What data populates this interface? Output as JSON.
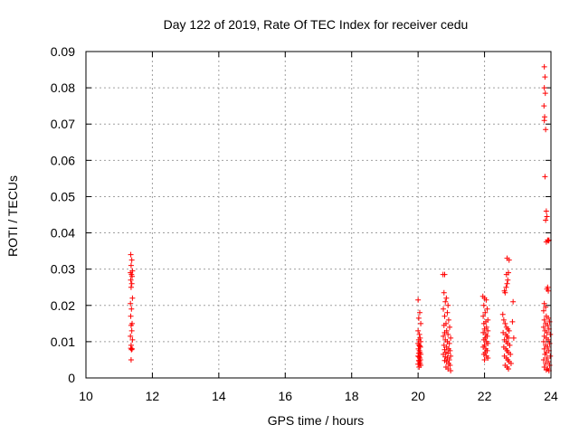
{
  "chart_data": {
    "type": "scatter",
    "title": "Day 122 of 2019, Rate Of TEC Index for receiver cedu",
    "xlabel": "GPS time / hours",
    "ylabel": "ROTI / TECUs",
    "xlim": [
      10,
      24
    ],
    "ylim": [
      0,
      0.09
    ],
    "xticks": [
      "10",
      "12",
      "14",
      "16",
      "18",
      "20",
      "22",
      "24"
    ],
    "yticks": [
      "0",
      "0.01",
      "0.02",
      "0.03",
      "0.04",
      "0.05",
      "0.06",
      "0.07",
      "0.08",
      "0.09"
    ],
    "grid": true,
    "marker": "+",
    "color": "#ff0000",
    "series": [
      {
        "name": "ROTI",
        "points": [
          [
            11.35,
            0.034
          ],
          [
            11.38,
            0.0325
          ],
          [
            11.36,
            0.031
          ],
          [
            11.4,
            0.0295
          ],
          [
            11.34,
            0.029
          ],
          [
            11.37,
            0.0285
          ],
          [
            11.39,
            0.028
          ],
          [
            11.35,
            0.027
          ],
          [
            11.38,
            0.026
          ],
          [
            11.36,
            0.025
          ],
          [
            11.4,
            0.022
          ],
          [
            11.34,
            0.0205
          ],
          [
            11.37,
            0.019
          ],
          [
            11.35,
            0.017
          ],
          [
            11.39,
            0.015
          ],
          [
            11.36,
            0.0145
          ],
          [
            11.38,
            0.013
          ],
          [
            11.34,
            0.0115
          ],
          [
            11.4,
            0.0105
          ],
          [
            11.36,
            0.009
          ],
          [
            11.35,
            0.0082
          ],
          [
            11.39,
            0.008
          ],
          [
            11.37,
            0.0078
          ],
          [
            11.36,
            0.005
          ],
          [
            20.0,
            0.0215
          ],
          [
            20.05,
            0.018
          ],
          [
            20.02,
            0.0165
          ],
          [
            20.08,
            0.015
          ],
          [
            20.0,
            0.013
          ],
          [
            20.04,
            0.012
          ],
          [
            20.06,
            0.011
          ],
          [
            20.02,
            0.0105
          ],
          [
            20.08,
            0.01
          ],
          [
            20.0,
            0.0095
          ],
          [
            20.03,
            0.009
          ],
          [
            20.05,
            0.0088
          ],
          [
            20.07,
            0.0085
          ],
          [
            20.01,
            0.008
          ],
          [
            20.04,
            0.0075
          ],
          [
            20.06,
            0.007
          ],
          [
            20.02,
            0.0068
          ],
          [
            20.08,
            0.0065
          ],
          [
            20.0,
            0.006
          ],
          [
            20.03,
            0.0058
          ],
          [
            20.05,
            0.0055
          ],
          [
            20.07,
            0.005
          ],
          [
            20.02,
            0.0048
          ],
          [
            20.04,
            0.0045
          ],
          [
            20.06,
            0.004
          ],
          [
            20.0,
            0.0038
          ],
          [
            20.08,
            0.0035
          ],
          [
            20.03,
            0.003
          ],
          [
            20.75,
            0.0285
          ],
          [
            20.8,
            0.0285
          ],
          [
            20.78,
            0.0235
          ],
          [
            20.85,
            0.022
          ],
          [
            20.82,
            0.021
          ],
          [
            20.9,
            0.02
          ],
          [
            20.76,
            0.019
          ],
          [
            20.88,
            0.018
          ],
          [
            20.8,
            0.017
          ],
          [
            20.92,
            0.016
          ],
          [
            20.84,
            0.015
          ],
          [
            20.78,
            0.0145
          ],
          [
            20.95,
            0.014
          ],
          [
            20.86,
            0.013
          ],
          [
            20.8,
            0.0125
          ],
          [
            20.9,
            0.012
          ],
          [
            20.76,
            0.0115
          ],
          [
            20.98,
            0.011
          ],
          [
            20.82,
            0.0105
          ],
          [
            20.88,
            0.01
          ],
          [
            20.94,
            0.0095
          ],
          [
            20.78,
            0.009
          ],
          [
            20.86,
            0.0085
          ],
          [
            20.92,
            0.008
          ],
          [
            20.8,
            0.0078
          ],
          [
            20.96,
            0.0075
          ],
          [
            20.84,
            0.007
          ],
          [
            20.9,
            0.0068
          ],
          [
            20.76,
            0.0065
          ],
          [
            20.98,
            0.006
          ],
          [
            20.82,
            0.0058
          ],
          [
            20.88,
            0.0055
          ],
          [
            20.94,
            0.005
          ],
          [
            20.8,
            0.0048
          ],
          [
            20.86,
            0.0045
          ],
          [
            20.92,
            0.004
          ],
          [
            20.96,
            0.0035
          ],
          [
            20.84,
            0.003
          ],
          [
            20.9,
            0.0025
          ],
          [
            20.98,
            0.002
          ],
          [
            21.95,
            0.0225
          ],
          [
            22.0,
            0.022
          ],
          [
            22.05,
            0.0215
          ],
          [
            21.98,
            0.02
          ],
          [
            22.08,
            0.019
          ],
          [
            22.02,
            0.018
          ],
          [
            21.96,
            0.017
          ],
          [
            22.1,
            0.016
          ],
          [
            22.04,
            0.0155
          ],
          [
            21.98,
            0.015
          ],
          [
            22.06,
            0.014
          ],
          [
            22.0,
            0.0135
          ],
          [
            22.1,
            0.013
          ],
          [
            21.96,
            0.0125
          ],
          [
            22.04,
            0.012
          ],
          [
            22.08,
            0.0115
          ],
          [
            22.02,
            0.011
          ],
          [
            21.98,
            0.0105
          ],
          [
            22.06,
            0.01
          ],
          [
            22.1,
            0.0095
          ],
          [
            22.0,
            0.009
          ],
          [
            21.96,
            0.0085
          ],
          [
            22.04,
            0.008
          ],
          [
            22.08,
            0.0075
          ],
          [
            22.02,
            0.007
          ],
          [
            21.98,
            0.0065
          ],
          [
            22.06,
            0.006
          ],
          [
            22.1,
            0.0055
          ],
          [
            22.0,
            0.005
          ],
          [
            22.55,
            0.0175
          ],
          [
            22.6,
            0.024
          ],
          [
            22.62,
            0.0235
          ],
          [
            22.65,
            0.025
          ],
          [
            22.68,
            0.026
          ],
          [
            22.7,
            0.027
          ],
          [
            22.66,
            0.0285
          ],
          [
            22.72,
            0.029
          ],
          [
            22.68,
            0.033
          ],
          [
            22.74,
            0.0325
          ],
          [
            22.58,
            0.016
          ],
          [
            22.62,
            0.015
          ],
          [
            22.66,
            0.014
          ],
          [
            22.7,
            0.0135
          ],
          [
            22.74,
            0.013
          ],
          [
            22.56,
            0.0125
          ],
          [
            22.64,
            0.012
          ],
          [
            22.68,
            0.0115
          ],
          [
            22.72,
            0.011
          ],
          [
            22.6,
            0.0105
          ],
          [
            22.66,
            0.01
          ],
          [
            22.7,
            0.0095
          ],
          [
            22.76,
            0.009
          ],
          [
            22.58,
            0.0085
          ],
          [
            22.64,
            0.008
          ],
          [
            22.68,
            0.0075
          ],
          [
            22.72,
            0.007
          ],
          [
            22.78,
            0.0065
          ],
          [
            22.6,
            0.006
          ],
          [
            22.66,
            0.0055
          ],
          [
            22.7,
            0.005
          ],
          [
            22.74,
            0.0045
          ],
          [
            22.8,
            0.004
          ],
          [
            22.62,
            0.0035
          ],
          [
            22.68,
            0.003
          ],
          [
            22.72,
            0.0025
          ],
          [
            22.86,
            0.021
          ],
          [
            22.84,
            0.0155
          ],
          [
            22.88,
            0.011
          ],
          [
            23.8,
            0.0858
          ],
          [
            23.82,
            0.083
          ],
          [
            23.8,
            0.08
          ],
          [
            23.83,
            0.0785
          ],
          [
            23.79,
            0.075
          ],
          [
            23.81,
            0.072
          ],
          [
            23.8,
            0.071
          ],
          [
            23.84,
            0.0685
          ],
          [
            23.82,
            0.0555
          ],
          [
            23.86,
            0.046
          ],
          [
            23.88,
            0.0445
          ],
          [
            23.84,
            0.0435
          ],
          [
            23.9,
            0.038
          ],
          [
            23.92,
            0.0378
          ],
          [
            23.86,
            0.0375
          ],
          [
            23.94,
            0.038
          ],
          [
            23.9,
            0.025
          ],
          [
            23.88,
            0.0245
          ],
          [
            23.92,
            0.024
          ],
          [
            23.8,
            0.0205
          ],
          [
            23.84,
            0.0195
          ],
          [
            23.78,
            0.0185
          ],
          [
            23.86,
            0.017
          ],
          [
            23.92,
            0.0165
          ],
          [
            23.8,
            0.016
          ],
          [
            23.96,
            0.0155
          ],
          [
            23.84,
            0.015
          ],
          [
            23.9,
            0.0145
          ],
          [
            23.78,
            0.014
          ],
          [
            23.94,
            0.0135
          ],
          [
            23.82,
            0.013
          ],
          [
            23.88,
            0.0125
          ],
          [
            23.98,
            0.012
          ],
          [
            23.8,
            0.0115
          ],
          [
            23.86,
            0.011
          ],
          [
            23.92,
            0.0105
          ],
          [
            23.78,
            0.01
          ],
          [
            23.96,
            0.0095
          ],
          [
            23.84,
            0.009
          ],
          [
            23.9,
            0.0085
          ],
          [
            23.8,
            0.008
          ],
          [
            23.94,
            0.0075
          ],
          [
            23.86,
            0.007
          ],
          [
            23.82,
            0.0065
          ],
          [
            23.98,
            0.006
          ],
          [
            23.88,
            0.0055
          ],
          [
            23.78,
            0.005
          ],
          [
            23.92,
            0.0045
          ],
          [
            23.84,
            0.004
          ],
          [
            23.96,
            0.0035
          ],
          [
            23.8,
            0.003
          ],
          [
            23.9,
            0.0025
          ],
          [
            23.86,
            0.0022
          ],
          [
            23.94,
            0.002
          ]
        ]
      }
    ]
  }
}
